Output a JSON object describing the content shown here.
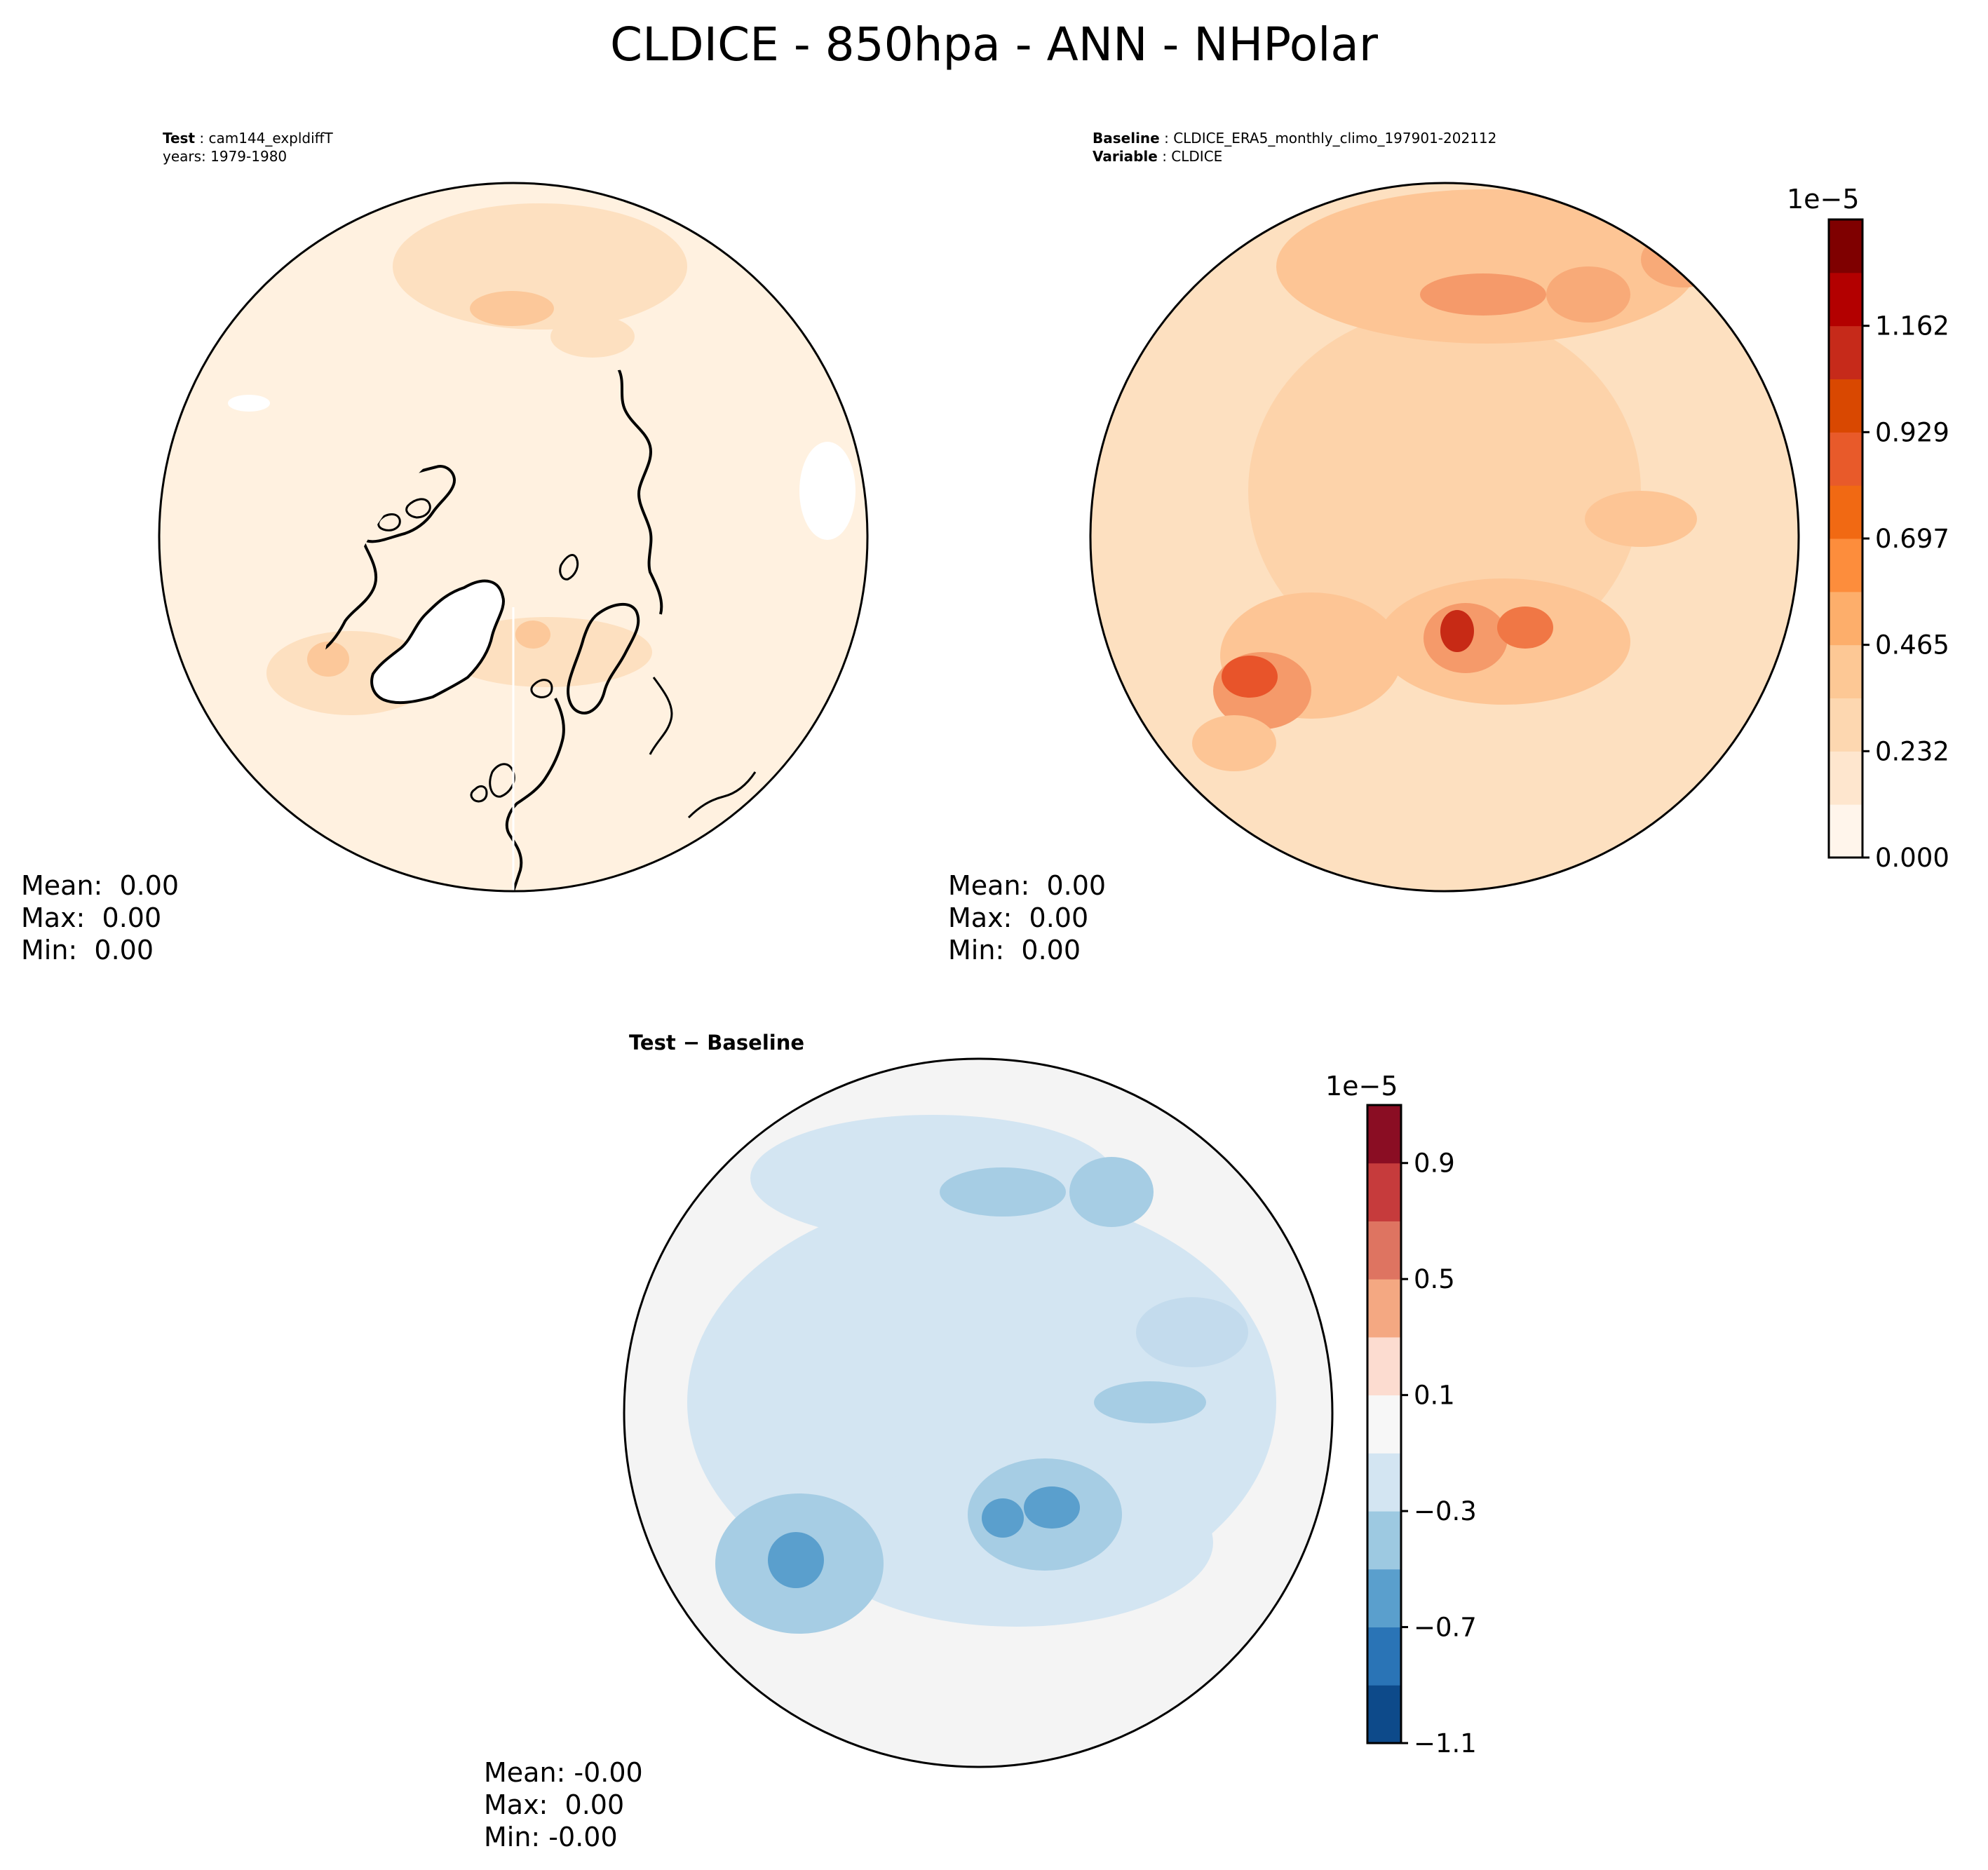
{
  "figure": {
    "title": "CLDICE - 850hpa - ANN - NHPolar"
  },
  "test_panel": {
    "test_label": "Test",
    "test_name": "cam144_expldiffT",
    "years": "years: 1979-1980",
    "stats": {
      "mean": "Mean:  0.00",
      "max": "Max:  0.00",
      "min": "Min:  0.00"
    }
  },
  "baseline_panel": {
    "baseline_label": "Baseline",
    "baseline_name": "CLDICE_ERA5_monthly_climo_197901-202112",
    "variable_label": "Variable",
    "variable_name": "CLDICE",
    "stats": {
      "mean": "Mean:  0.00",
      "max": "Max:  0.00",
      "min": "Min:  0.00"
    }
  },
  "diff_panel": {
    "label": "Test − Baseline",
    "stats": {
      "mean": "Mean: -0.00",
      "max": "Max:  0.00",
      "min": "Min: -0.00"
    }
  },
  "colorbar_main": {
    "exponent": "1e−5",
    "ticks": [
      "0.000",
      "0.232",
      "0.465",
      "0.697",
      "0.929",
      "1.162"
    ],
    "colors": [
      "#fff5eb",
      "#fee6ce",
      "#fdd7b0",
      "#fdc895",
      "#fdae6b",
      "#fd8d3c",
      "#f16913",
      "#e85a2a",
      "#d94801",
      "#c62a1a",
      "#b30000",
      "#7f0000"
    ]
  },
  "colorbar_diff": {
    "exponent": "1e−5",
    "ticks": [
      "−1.1",
      "−0.7",
      "−0.3",
      "0.1",
      "0.5",
      "0.9"
    ],
    "colors": [
      "#0d4a8a",
      "#2a74b6",
      "#5a9fcd",
      "#9dc9e1",
      "#d3e5f2",
      "#f7f7f7",
      "#fcdcd0",
      "#f4a882",
      "#de7461",
      "#c63b3c",
      "#8a0d23"
    ]
  }
}
